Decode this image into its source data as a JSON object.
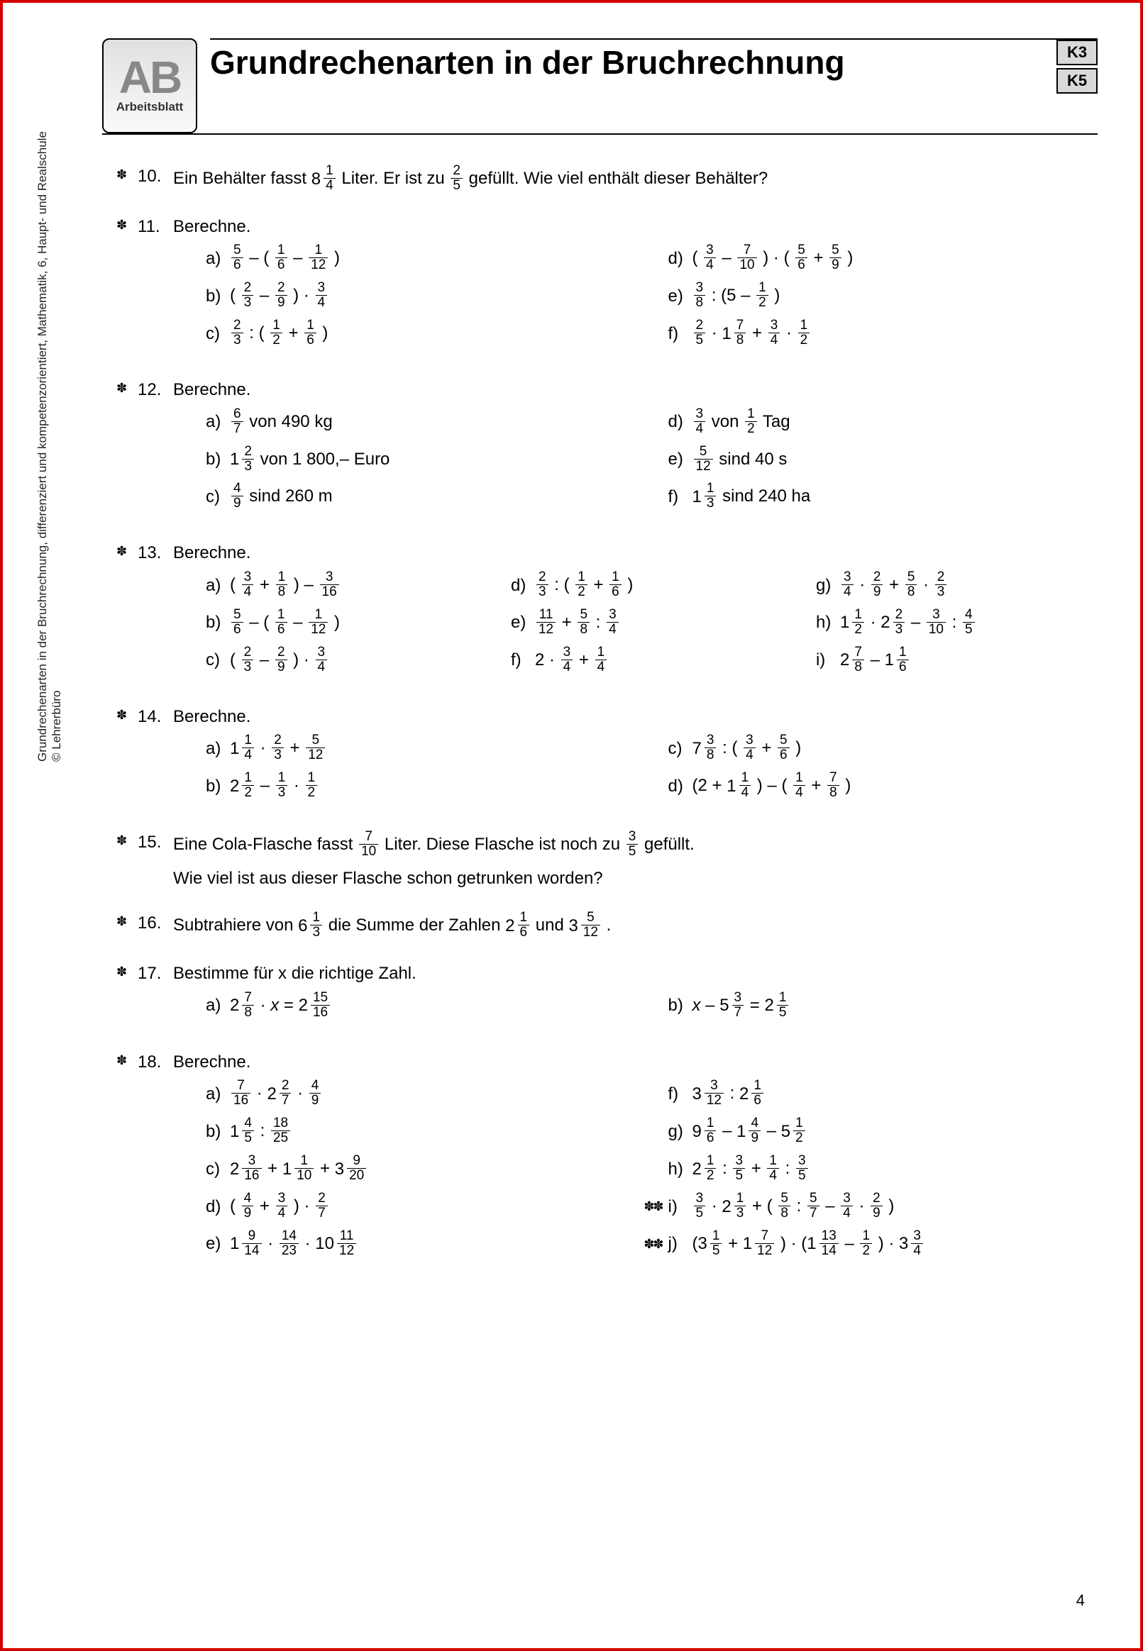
{
  "logo": {
    "letters": "AB",
    "sub": "Arbeitsblatt"
  },
  "title": "Grundrechenarten in der Bruchrechnung",
  "badges": [
    "K3",
    "K5"
  ],
  "side_text_line1": "Grundrechenarten in der Bruchrechnung, differenziert und kompetenzorientiert, Mathematik, 6, Haupt- und Realschule",
  "side_text_line2": "© Lehrerbüro",
  "page_number": "4",
  "marker2": "✽",
  "marker3": "✽✽",
  "problems": [
    {
      "n": "10.",
      "difficulty": 2,
      "text_parts": [
        "Ein Behälter fasst ",
        {
          "mixed": [
            8,
            1,
            4
          ]
        },
        "  Liter. Er ist zu  ",
        {
          "frac": [
            2,
            5
          ]
        },
        "  gefüllt. Wie viel enthält dieser Behälter?"
      ]
    },
    {
      "n": "11.",
      "difficulty": 2,
      "title": "Berechne.",
      "cols": 2,
      "items": [
        {
          "l": "a)",
          "e": [
            {
              "frac": [
                5,
                6
              ]
            },
            "  – ( ",
            {
              "frac": [
                1,
                6
              ]
            },
            "  –  ",
            {
              "frac": [
                1,
                12
              ]
            },
            " )"
          ]
        },
        {
          "l": "d)",
          "e": [
            "( ",
            {
              "frac": [
                3,
                4
              ]
            },
            "  –  ",
            {
              "frac": [
                7,
                10
              ]
            },
            " ) · ( ",
            {
              "frac": [
                5,
                6
              ]
            },
            "  +  ",
            {
              "frac": [
                5,
                9
              ]
            },
            " )"
          ]
        },
        {
          "l": "b)",
          "e": [
            "( ",
            {
              "frac": [
                2,
                3
              ]
            },
            "  –  ",
            {
              "frac": [
                2,
                9
              ]
            },
            " ) ·  ",
            {
              "frac": [
                3,
                4
              ]
            }
          ]
        },
        {
          "l": "e)",
          "e": [
            {
              "frac": [
                3,
                8
              ]
            },
            "  : (5 –  ",
            {
              "frac": [
                1,
                2
              ]
            },
            " )"
          ]
        },
        {
          "l": "c)",
          "e": [
            {
              "frac": [
                2,
                3
              ]
            },
            "  : ( ",
            {
              "frac": [
                1,
                2
              ]
            },
            "  +  ",
            {
              "frac": [
                1,
                6
              ]
            },
            " )"
          ]
        },
        {
          "l": "f)",
          "e": [
            {
              "frac": [
                2,
                5
              ]
            },
            "  · ",
            {
              "mixed": [
                1,
                7,
                8
              ]
            },
            "  +  ",
            {
              "frac": [
                3,
                4
              ]
            },
            "  ·  ",
            {
              "frac": [
                1,
                2
              ]
            }
          ]
        }
      ]
    },
    {
      "n": "12.",
      "difficulty": 2,
      "title": "Berechne.",
      "cols": 2,
      "items": [
        {
          "l": "a)",
          "e": [
            {
              "frac": [
                6,
                7
              ]
            },
            "  von 490 kg"
          ]
        },
        {
          "l": "d)",
          "e": [
            {
              "frac": [
                3,
                4
              ]
            },
            "  von  ",
            {
              "frac": [
                1,
                2
              ]
            },
            "  Tag"
          ]
        },
        {
          "l": "b)",
          "e": [
            {
              "mixed": [
                1,
                2,
                3
              ]
            },
            "  von 1 800,– Euro"
          ]
        },
        {
          "l": "e)",
          "e": [
            {
              "frac": [
                5,
                12
              ]
            },
            "  sind 40 s"
          ]
        },
        {
          "l": "c)",
          "e": [
            {
              "frac": [
                4,
                9
              ]
            },
            "  sind 260 m"
          ]
        },
        {
          "l": "f)",
          "e": [
            {
              "mixed": [
                1,
                1,
                3
              ]
            },
            "  sind 240 ha"
          ]
        }
      ]
    },
    {
      "n": "13.",
      "difficulty": 2,
      "title": "Berechne.",
      "cols": 3,
      "items": [
        {
          "l": "a)",
          "e": [
            "( ",
            {
              "frac": [
                3,
                4
              ]
            },
            "  +  ",
            {
              "frac": [
                1,
                8
              ]
            },
            " ) –  ",
            {
              "frac": [
                3,
                16
              ]
            }
          ]
        },
        {
          "l": "d)",
          "e": [
            {
              "frac": [
                2,
                3
              ]
            },
            "  : ( ",
            {
              "frac": [
                1,
                2
              ]
            },
            "  +  ",
            {
              "frac": [
                1,
                6
              ]
            },
            " )"
          ]
        },
        {
          "l": "g)",
          "e": [
            {
              "frac": [
                3,
                4
              ]
            },
            " · ",
            {
              "frac": [
                2,
                9
              ]
            },
            "  +  ",
            {
              "frac": [
                5,
                8
              ]
            },
            " · ",
            {
              "frac": [
                2,
                3
              ]
            }
          ]
        },
        {
          "l": "b)",
          "e": [
            {
              "frac": [
                5,
                6
              ]
            },
            "  – ( ",
            {
              "frac": [
                1,
                6
              ]
            },
            "  –  ",
            {
              "frac": [
                1,
                12
              ]
            },
            " )"
          ]
        },
        {
          "l": "e)",
          "e": [
            {
              "frac": [
                11,
                12
              ]
            },
            "  +  ",
            {
              "frac": [
                5,
                8
              ]
            },
            "  :  ",
            {
              "frac": [
                3,
                4
              ]
            }
          ]
        },
        {
          "l": "h)",
          "e": [
            {
              "mixed": [
                1,
                1,
                2
              ]
            },
            " · ",
            {
              "mixed": [
                2,
                2,
                3
              ]
            },
            "  –  ",
            {
              "frac": [
                3,
                10
              ]
            },
            "  :  ",
            {
              "frac": [
                4,
                5
              ]
            }
          ]
        },
        {
          "l": "c)",
          "e": [
            "( ",
            {
              "frac": [
                2,
                3
              ]
            },
            "  –  ",
            {
              "frac": [
                2,
                9
              ]
            },
            " ) ·  ",
            {
              "frac": [
                3,
                4
              ]
            }
          ]
        },
        {
          "l": "f)",
          "e": [
            "2 ·  ",
            {
              "frac": [
                3,
                4
              ]
            },
            "  +  ",
            {
              "frac": [
                1,
                4
              ]
            }
          ]
        },
        {
          "l": "i)",
          "e": [
            {
              "mixed": [
                2,
                7,
                8
              ]
            },
            "  –  ",
            {
              "mixed": [
                1,
                1,
                6
              ]
            }
          ]
        }
      ]
    },
    {
      "n": "14.",
      "difficulty": 2,
      "title": "Berechne.",
      "cols": 2,
      "items": [
        {
          "l": "a)",
          "e": [
            {
              "mixed": [
                1,
                1,
                4
              ]
            },
            "  ·  ",
            {
              "frac": [
                2,
                3
              ]
            },
            "  +  ",
            {
              "frac": [
                5,
                12
              ]
            }
          ]
        },
        {
          "l": "c)",
          "e": [
            {
              "mixed": [
                7,
                3,
                8
              ]
            },
            "  : ( ",
            {
              "frac": [
                3,
                4
              ]
            },
            "  +  ",
            {
              "frac": [
                5,
                6
              ]
            },
            " )"
          ]
        },
        {
          "l": "b)",
          "e": [
            {
              "mixed": [
                2,
                1,
                2
              ]
            },
            "  –  ",
            {
              "frac": [
                1,
                3
              ]
            },
            "  ·  ",
            {
              "frac": [
                1,
                2
              ]
            }
          ]
        },
        {
          "l": "d)",
          "e": [
            "(2 + ",
            {
              "mixed": [
                1,
                1,
                4
              ]
            },
            " ) – ( ",
            {
              "frac": [
                1,
                4
              ]
            },
            "  +  ",
            {
              "frac": [
                7,
                8
              ]
            },
            " )"
          ]
        }
      ]
    },
    {
      "n": "15.",
      "difficulty": 2,
      "text_parts": [
        "Eine Cola-Flasche fasst  ",
        {
          "frac": [
            7,
            10
          ]
        },
        "  Liter. Diese Flasche ist noch zu  ",
        {
          "frac": [
            3,
            5
          ]
        },
        "  gefüllt."
      ],
      "text2": "Wie viel ist aus dieser Flasche schon getrunken worden?"
    },
    {
      "n": "16.",
      "difficulty": 2,
      "text_parts": [
        "Subtrahiere von ",
        {
          "mixed": [
            6,
            1,
            3
          ]
        },
        "  die Summe der Zahlen ",
        {
          "mixed": [
            2,
            1,
            6
          ]
        },
        "  und ",
        {
          "mixed": [
            3,
            5,
            12
          ]
        },
        " ."
      ]
    },
    {
      "n": "17.",
      "difficulty": 2,
      "title": "Bestimme für x die richtige Zahl.",
      "cols": 2,
      "items": [
        {
          "l": "a)",
          "e": [
            {
              "mixed": [
                2,
                7,
                8
              ]
            },
            "  · ",
            {
              "it": "x"
            },
            " = ",
            {
              "mixed": [
                2,
                15,
                16
              ]
            }
          ]
        },
        {
          "l": "b)",
          "e": [
            {
              "it": "x"
            },
            " – ",
            {
              "mixed": [
                5,
                3,
                7
              ]
            },
            "  = ",
            {
              "mixed": [
                2,
                1,
                5
              ]
            }
          ]
        }
      ]
    },
    {
      "n": "18.",
      "difficulty": 2,
      "title": "Berechne.",
      "cols": 2,
      "items": [
        {
          "l": "a)",
          "e": [
            {
              "frac": [
                7,
                16
              ]
            },
            " · ",
            {
              "mixed": [
                2,
                2,
                7
              ]
            },
            "  ·  ",
            {
              "frac": [
                4,
                9
              ]
            }
          ]
        },
        {
          "l": "f)",
          "e": [
            {
              "mixed": [
                3,
                3,
                12
              ]
            },
            "  : ",
            {
              "mixed": [
                2,
                1,
                6
              ]
            }
          ]
        },
        {
          "l": "b)",
          "e": [
            {
              "mixed": [
                1,
                4,
                5
              ]
            },
            "  :  ",
            {
              "frac": [
                18,
                25
              ]
            }
          ]
        },
        {
          "l": "g)",
          "e": [
            {
              "mixed": [
                9,
                1,
                6
              ]
            },
            "  – ",
            {
              "mixed": [
                1,
                4,
                9
              ]
            },
            "  – ",
            {
              "mixed": [
                5,
                1,
                2
              ]
            }
          ]
        },
        {
          "l": "c)",
          "e": [
            {
              "mixed": [
                2,
                3,
                16
              ]
            },
            "  + ",
            {
              "mixed": [
                1,
                1,
                10
              ]
            },
            "  + ",
            {
              "mixed": [
                3,
                9,
                20
              ]
            }
          ]
        },
        {
          "l": "h)",
          "e": [
            {
              "mixed": [
                2,
                1,
                2
              ]
            },
            "  :  ",
            {
              "frac": [
                3,
                5
              ]
            },
            "  +  ",
            {
              "frac": [
                1,
                4
              ]
            },
            "  :  ",
            {
              "frac": [
                3,
                5
              ]
            }
          ]
        },
        {
          "l": "d)",
          "e": [
            "( ",
            {
              "frac": [
                4,
                9
              ]
            },
            "  +  ",
            {
              "frac": [
                3,
                4
              ]
            },
            " ) ·  ",
            {
              "frac": [
                2,
                7
              ]
            }
          ]
        },
        {
          "l": "i)",
          "d": 3,
          "e": [
            {
              "frac": [
                3,
                5
              ]
            },
            " · ",
            {
              "mixed": [
                2,
                1,
                3
              ]
            },
            "  + ( ",
            {
              "frac": [
                5,
                8
              ]
            },
            "  :  ",
            {
              "frac": [
                5,
                7
              ]
            },
            "  –  ",
            {
              "frac": [
                3,
                4
              ]
            },
            " · ",
            {
              "frac": [
                2,
                9
              ]
            },
            " )"
          ]
        },
        {
          "l": "e)",
          "e": [
            {
              "mixed": [
                1,
                9,
                14
              ]
            },
            "  ·  ",
            {
              "frac": [
                14,
                23
              ]
            },
            "  · ",
            {
              "mixed": [
                10,
                11,
                12
              ]
            }
          ]
        },
        {
          "l": "j)",
          "d": 3,
          "e": [
            "(",
            {
              "mixed": [
                3,
                1,
                5
              ]
            },
            "  + ",
            {
              "mixed": [
                1,
                7,
                12
              ]
            },
            " ) · (",
            {
              "mixed": [
                1,
                13,
                14
              ]
            },
            "  –  ",
            {
              "frac": [
                1,
                2
              ]
            },
            " ) · ",
            {
              "mixed": [
                3,
                3,
                4
              ]
            }
          ]
        }
      ]
    }
  ]
}
